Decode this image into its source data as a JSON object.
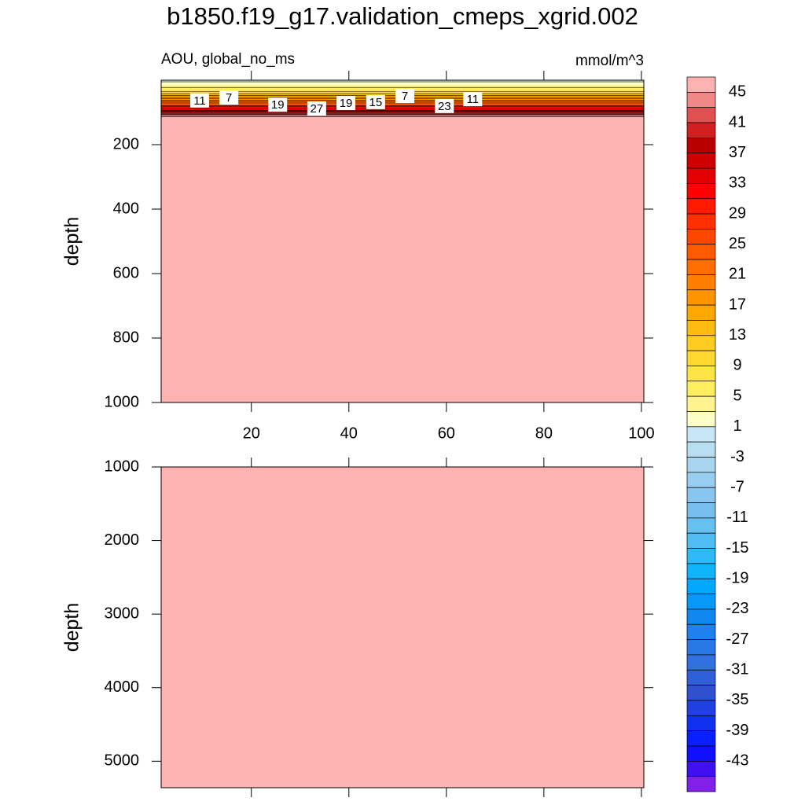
{
  "chart_data": {
    "type": "contour",
    "title": "b1850.f19_g17.validation_cmeps_xgrid.002",
    "subtitle": "AOU, global_no_ms",
    "units": "mmol/m^3",
    "xlim": [
      1.5,
      100.5
    ],
    "xticks": [
      20,
      40,
      60,
      80,
      100
    ],
    "panels": [
      {
        "ylabel": "depth",
        "ylim": [
          1000,
          0
        ],
        "yticks": [
          200,
          400,
          600,
          800,
          1000
        ],
        "xtick_labels": true
      },
      {
        "ylabel": "depth",
        "ylim": [
          5360,
          1000
        ],
        "yticks": [
          1000,
          2000,
          3000,
          4000,
          5000
        ],
        "xtick_labels": false
      }
    ],
    "profile": {
      "depth": [
        0,
        15,
        30,
        45,
        60,
        75,
        90,
        105,
        115
      ],
      "values": [
        0,
        3,
        7,
        12,
        18,
        25,
        33,
        42,
        48
      ]
    },
    "contour_labels": [
      {
        "x": 9.4,
        "depth": 63,
        "value": 11
      },
      {
        "x": 15.4,
        "depth": 54,
        "value": 7
      },
      {
        "x": 25.4,
        "depth": 76,
        "value": 19
      },
      {
        "x": 33.4,
        "depth": 88,
        "value": 27
      },
      {
        "x": 39.4,
        "depth": 71,
        "value": 19
      },
      {
        "x": 45.5,
        "depth": 68,
        "value": 15
      },
      {
        "x": 51.5,
        "depth": 49,
        "value": 7
      },
      {
        "x": 59.6,
        "depth": 80,
        "value": 23
      },
      {
        "x": 65.4,
        "depth": 59,
        "value": 11
      }
    ],
    "colorbar": {
      "clim": [
        -47,
        47
      ],
      "ticks": [
        45,
        41,
        37,
        33,
        29,
        25,
        21,
        17,
        13,
        9,
        5,
        1,
        -3,
        -7,
        -11,
        -15,
        -19,
        -23,
        -27,
        -31,
        -35,
        -39,
        -43
      ],
      "colors": [
        "#ffb2b2",
        "#f08888",
        "#e05050",
        "#d02020",
        "#b80000",
        "#d00000",
        "#e40000",
        "#ff0000",
        "#ff1a00",
        "#ff3000",
        "#ff4500",
        "#ff5a00",
        "#ff6e00",
        "#ff8000",
        "#ff9400",
        "#ffa800",
        "#ffbc10",
        "#ffcc20",
        "#ffd830",
        "#ffe448",
        "#ffee60",
        "#fff490",
        "#ffffc8",
        "#c8e6f5",
        "#b8def2",
        "#a8d6f0",
        "#98cef0",
        "#88c6f0",
        "#78beef",
        "#68c0f0",
        "#50bef5",
        "#30b8f8",
        "#10b4fa",
        "#00a8ff",
        "#0898f8",
        "#1088f0",
        "#2080f0",
        "#2878e8",
        "#3070e0",
        "#3060d8",
        "#3050d0",
        "#2040e0",
        "#1030f0",
        "#0820ff",
        "#1010ff",
        "#4010f0",
        "#8020e8"
      ]
    }
  }
}
